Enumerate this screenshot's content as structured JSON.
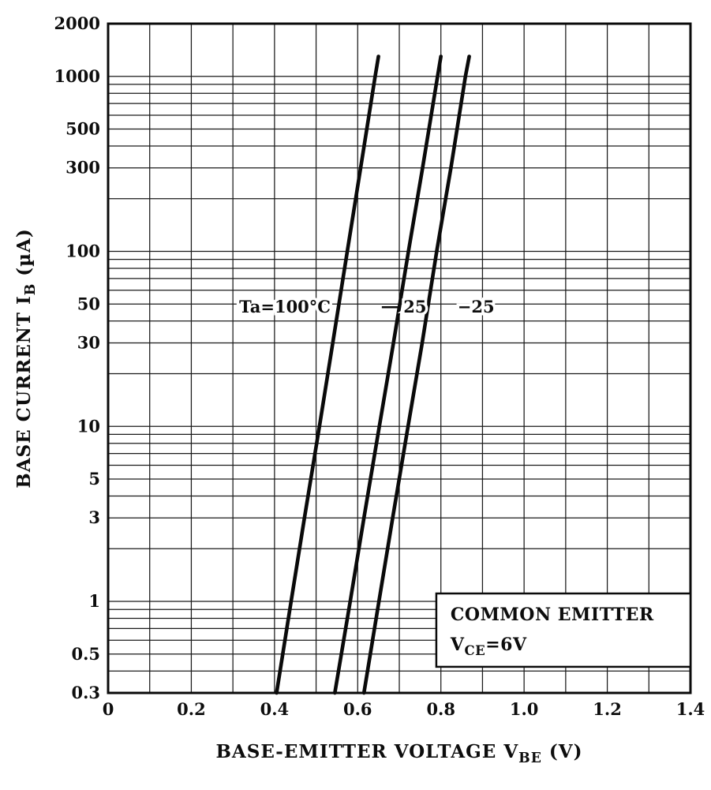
{
  "chart_data": {
    "type": "line",
    "title": "",
    "x_scale": "linear",
    "y_scale": "log",
    "xlabel_parts": [
      {
        "text": "BASE-EMITTER VOLTAGE   V"
      },
      {
        "text": "BE",
        "sub": true
      },
      {
        "text": "   (V)"
      }
    ],
    "ylabel_parts": [
      {
        "text": "BASE CURRENT   I"
      },
      {
        "text": "B",
        "sub": true
      },
      {
        "text": "   (µA)"
      }
    ],
    "x_axis": {
      "min": 0,
      "max": 1.4,
      "tick_labels": [
        {
          "value": 0,
          "label": "0"
        },
        {
          "value": 0.2,
          "label": "0.2"
        },
        {
          "value": 0.4,
          "label": "0.4"
        },
        {
          "value": 0.6,
          "label": "0.6"
        },
        {
          "value": 0.8,
          "label": "0.8"
        },
        {
          "value": 1.0,
          "label": "1.0"
        },
        {
          "value": 1.2,
          "label": "1.2"
        },
        {
          "value": 1.4,
          "label": "1.4"
        }
      ],
      "gridlines": [
        0.1,
        0.2,
        0.3,
        0.4,
        0.5,
        0.6,
        0.7,
        0.8,
        0.9,
        1.0,
        1.1,
        1.2,
        1.3
      ]
    },
    "y_axis": {
      "min": 0.3,
      "max": 2000,
      "tick_labels": [
        {
          "value": 2000,
          "label": "2000"
        },
        {
          "value": 1000,
          "label": "1000"
        },
        {
          "value": 500,
          "label": "500"
        },
        {
          "value": 300,
          "label": "300"
        },
        {
          "value": 100,
          "label": "100"
        },
        {
          "value": 50,
          "label": "50"
        },
        {
          "value": 30,
          "label": "30"
        },
        {
          "value": 10,
          "label": "10"
        },
        {
          "value": 5,
          "label": "5"
        },
        {
          "value": 3,
          "label": "3"
        },
        {
          "value": 1,
          "label": "1"
        },
        {
          "value": 0.5,
          "label": "0.5"
        },
        {
          "value": 0.3,
          "label": "0.3"
        }
      ],
      "gridlines": [
        0.4,
        0.5,
        0.6,
        0.7,
        0.8,
        0.9,
        1,
        2,
        3,
        4,
        5,
        6,
        7,
        8,
        9,
        10,
        20,
        30,
        40,
        50,
        60,
        70,
        80,
        90,
        100,
        200,
        300,
        400,
        500,
        600,
        700,
        800,
        900,
        1000
      ]
    },
    "series": [
      {
        "name": "Ta=100°C",
        "points": [
          [
            0.405,
            0.3
          ],
          [
            0.44,
            1
          ],
          [
            0.472,
            3
          ],
          [
            0.508,
            10
          ],
          [
            0.54,
            30
          ],
          [
            0.575,
            100
          ],
          [
            0.607,
            300
          ],
          [
            0.642,
            1000
          ],
          [
            0.65,
            1300
          ]
        ]
      },
      {
        "name": "25°C",
        "points": [
          [
            0.545,
            0.3
          ],
          [
            0.582,
            1
          ],
          [
            0.615,
            3
          ],
          [
            0.652,
            10
          ],
          [
            0.686,
            30
          ],
          [
            0.722,
            100
          ],
          [
            0.756,
            300
          ],
          [
            0.792,
            1000
          ],
          [
            0.8,
            1300
          ]
        ]
      },
      {
        "name": "−25°C",
        "points": [
          [
            0.615,
            0.3
          ],
          [
            0.651,
            1
          ],
          [
            0.684,
            3
          ],
          [
            0.721,
            10
          ],
          [
            0.755,
            30
          ],
          [
            0.79,
            100
          ],
          [
            0.824,
            300
          ],
          [
            0.859,
            1000
          ],
          [
            0.868,
            1300
          ]
        ]
      }
    ],
    "annotations": [
      {
        "parts": [
          {
            "text": "Ta=100°C"
          }
        ],
        "x": 0.535,
        "y": 48,
        "anchor": "end"
      },
      {
        "parts": [
          {
            "text": "25"
          }
        ],
        "x": 0.71,
        "y": 48,
        "anchor": "start",
        "leader": {
          "x1": 0.658,
          "x2": 0.698
        }
      },
      {
        "parts": [
          {
            "text": "−25"
          }
        ],
        "x": 0.84,
        "y": 48,
        "anchor": "start"
      }
    ],
    "legend": {
      "box": {
        "x1": 0.789,
        "x2": 1.4,
        "y_top": 1.11,
        "y_bottom": 0.423
      },
      "lines": [
        [
          {
            "text": "COMMON EMITTER"
          }
        ],
        [
          {
            "text": "V"
          },
          {
            "text": "CE",
            "sub": true
          },
          {
            "text": "=6V"
          }
        ]
      ]
    }
  },
  "colors": {
    "curve": "#0a0a0a",
    "grid": "#1a1a1a",
    "text": "#0d0d0d",
    "background": "#ffffff",
    "legend_border": "#0a0a0a"
  }
}
